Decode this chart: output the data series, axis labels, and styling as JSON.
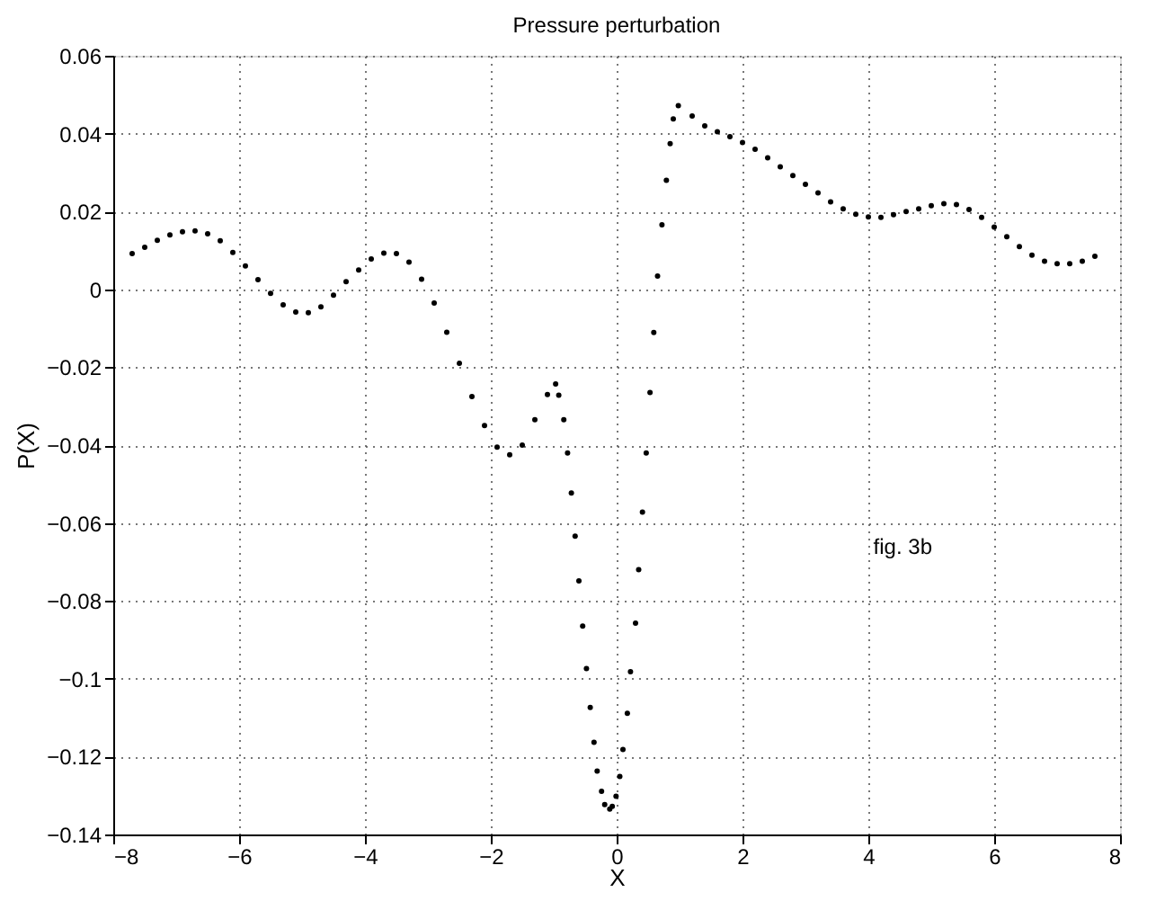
{
  "chart_data": {
    "type": "scatter",
    "title": "Pressure perturbation",
    "xlabel": "X",
    "ylabel": "P(X)",
    "xlim": [
      -8,
      8
    ],
    "xticks": [
      -8,
      -6,
      -4,
      -2,
      0,
      2,
      4,
      6,
      8
    ],
    "ylim": [
      -0.14,
      0.06
    ],
    "yticks": [
      -0.14,
      -0.12,
      -0.1,
      -0.08,
      -0.06,
      -0.04,
      -0.02,
      0,
      0.02,
      0.04,
      0.06
    ],
    "grid": true,
    "marker": "circle",
    "annotations": [
      "fig. 3b"
    ],
    "series": [
      {
        "color": "#000000",
        "x": [
          -7.7,
          -7.5,
          -7.3,
          -7.1,
          -6.9,
          -6.7,
          -6.5,
          -6.3,
          -6.1,
          -5.9,
          -5.7,
          -5.5,
          -5.3,
          -5.1,
          -4.9,
          -4.7,
          -4.5,
          -4.3,
          -4.1,
          -3.9,
          -3.7,
          -3.5,
          -3.3,
          -3.1,
          -2.9,
          -2.7,
          -2.5,
          -2.3,
          -2.1,
          -1.9,
          -1.7,
          -1.5,
          -1.3,
          -1.1,
          -0.97,
          -0.92,
          -0.84,
          -0.78,
          -0.72,
          -0.66,
          -0.6,
          -0.54,
          -0.48,
          -0.42,
          -0.36,
          -0.31,
          -0.24,
          -0.19,
          -0.11,
          -0.07,
          -0.01,
          0.05,
          0.1,
          0.17,
          0.22,
          0.3,
          0.35,
          0.41,
          0.47,
          0.53,
          0.59,
          0.65,
          0.72,
          0.79,
          0.85,
          0.9,
          0.98,
          1.2,
          1.4,
          1.6,
          1.8,
          2.0,
          2.2,
          2.4,
          2.6,
          2.8,
          3.0,
          3.2,
          3.4,
          3.6,
          3.8,
          4.0,
          4.2,
          4.4,
          4.6,
          4.8,
          5.0,
          5.2,
          5.4,
          5.6,
          5.8,
          6.0,
          6.2,
          6.4,
          6.6,
          6.8,
          7.0,
          7.2,
          7.4,
          7.6
        ],
        "values": [
          0.0092,
          0.0108,
          0.0126,
          0.014,
          0.0148,
          0.015,
          0.0143,
          0.0125,
          0.0095,
          0.006,
          0.0025,
          -0.001,
          -0.004,
          -0.0058,
          -0.006,
          -0.0045,
          -0.0015,
          0.002,
          0.005,
          0.0078,
          0.0093,
          0.0092,
          0.007,
          0.0026,
          -0.0035,
          -0.011,
          -0.019,
          -0.0275,
          -0.035,
          -0.0405,
          -0.0425,
          -0.04,
          -0.0335,
          -0.027,
          -0.0243,
          -0.0272,
          -0.0335,
          -0.042,
          -0.0523,
          -0.0634,
          -0.0749,
          -0.0865,
          -0.0974,
          -0.1074,
          -0.1163,
          -0.1237,
          -0.1289,
          -0.1323,
          -0.1335,
          -0.1328,
          -0.1302,
          -0.1251,
          -0.1182,
          -0.1089,
          -0.0982,
          -0.0857,
          -0.072,
          -0.0572,
          -0.042,
          -0.0265,
          -0.0111,
          0.0034,
          0.0166,
          0.028,
          0.0374,
          0.0438,
          0.0472,
          0.0445,
          0.042,
          0.0405,
          0.0392,
          0.0377,
          0.036,
          0.0338,
          0.0315,
          0.0292,
          0.027,
          0.0248,
          0.0225,
          0.0207,
          0.0193,
          0.0186,
          0.0185,
          0.0192,
          0.02,
          0.0207,
          0.0215,
          0.022,
          0.0218,
          0.0205,
          0.0185,
          0.016,
          0.0135,
          0.011,
          0.0088,
          0.0072,
          0.0066,
          0.0066,
          0.0072,
          0.0085
        ]
      }
    ]
  }
}
